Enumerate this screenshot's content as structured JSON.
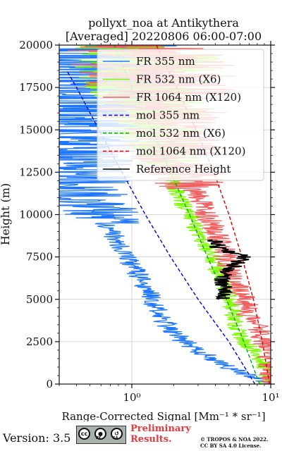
{
  "chart_data": {
    "type": "line",
    "title": "pollyxt_noa at Antikythera",
    "subtitle": "[Averaged] 20220806 06:00-07:00",
    "xlabel": "Range-Corrected Signal [Mm⁻¹ * sr⁻¹]",
    "ylabel": "Height (m)",
    "xscale": "log",
    "xlim": [
      0.3,
      10
    ],
    "ylim": [
      0,
      20000
    ],
    "x_ticks": [
      "10⁰",
      "10¹"
    ],
    "y_ticks": [
      "0",
      "2500",
      "5000",
      "7500",
      "10000",
      "12500",
      "15000",
      "17500",
      "20000"
    ],
    "grid": true,
    "legend_position": "top-right",
    "series": [
      {
        "name": "FR 355 nm",
        "color": "#1f77ff",
        "style": "solid",
        "height": [
          0,
          250,
          500,
          1000,
          1500,
          2000,
          2500,
          3000,
          4000,
          5000,
          6000,
          7000,
          8000,
          9000,
          10000,
          11000,
          12000,
          13000,
          14000,
          15000,
          16000,
          17000,
          18000,
          19000,
          20000
        ],
        "signal": [
          9.5,
          8.5,
          7.0,
          4.8,
          3.8,
          3.0,
          2.4,
          2.0,
          1.6,
          1.4,
          1.2,
          1.0,
          0.85,
          0.7,
          0.6,
          0.5,
          0.45,
          0.4,
          0.4,
          0.4,
          0.4,
          0.4,
          0.4,
          0.4,
          0.4
        ]
      },
      {
        "name": "FR 532 nm (X6)",
        "color": "#7cfc00",
        "style": "solid",
        "height": [
          0,
          500,
          1000,
          1500,
          2000,
          2500,
          3000,
          4000,
          5000,
          6000,
          7000,
          8000,
          9000,
          10000,
          11000,
          12000,
          13000,
          14000,
          15000,
          16000,
          17000,
          18000,
          19000,
          20000
        ],
        "signal": [
          9.5,
          9.5,
          9.3,
          8.5,
          7.5,
          6.5,
          6.0,
          5.5,
          5.0,
          4.6,
          4.0,
          3.5,
          3.0,
          2.6,
          2.2,
          2.0,
          1.8,
          1.7,
          1.6,
          1.5,
          1.4,
          1.3,
          1.2,
          1.2
        ]
      },
      {
        "name": "FR 1064 nm (X120)",
        "color": "#f06060",
        "style": "solid",
        "height": [
          0,
          500,
          1000,
          2000,
          3000,
          4000,
          5000,
          6000,
          7000,
          8000,
          9000,
          10000,
          11000,
          12000,
          13000,
          14000,
          15000,
          16000,
          17000,
          18000,
          19000,
          20000
        ],
        "signal": [
          10,
          10,
          10,
          9.5,
          8.5,
          7.0,
          6.5,
          5.5,
          5.0,
          4.5,
          4.0,
          3.5,
          3.0,
          2.6,
          2.2,
          2.0,
          1.8,
          1.7,
          1.6,
          1.5,
          1.5,
          1.5
        ]
      },
      {
        "name": "mol 355 nm",
        "color": "#0000dd",
        "style": "dashed",
        "height": [
          0,
          2500,
          5000,
          7500,
          10000,
          12500,
          15000,
          17500,
          18500
        ],
        "signal": [
          7.7,
          5.0,
          3.0,
          1.9,
          1.25,
          0.85,
          0.58,
          0.4,
          0.34
        ]
      },
      {
        "name": "mol 532 nm (X6)",
        "color": "#00aa00",
        "style": "dashed",
        "height": [
          0,
          2500,
          5000,
          7500,
          10000,
          12500,
          15000,
          17500,
          20000
        ],
        "signal": [
          8.3,
          6.4,
          4.8,
          3.5,
          2.6,
          1.9,
          1.4,
          1.0,
          0.75
        ]
      },
      {
        "name": "mol 1064 nm (X120)",
        "color": "#e00000",
        "style": "dashed",
        "height": [
          0,
          2500,
          5000,
          7500,
          10000,
          12500,
          15000,
          17500,
          20000
        ],
        "signal": [
          9.8,
          8.7,
          7.5,
          6.2,
          5.0,
          3.9,
          2.9,
          2.1,
          1.5
        ]
      },
      {
        "name": "Reference Height",
        "color": "#000000",
        "style": "solid",
        "height": [
          5000,
          5500,
          6000,
          6500,
          7000,
          7500,
          8000,
          8500
        ],
        "signal": [
          4.5,
          4.8,
          4.4,
          4.6,
          5.5,
          6.5,
          4.2,
          4.0
        ]
      }
    ]
  },
  "footer": {
    "version": "Version: 3.5",
    "license_badge": {
      "cc": "cc",
      "by": "BY",
      "sa": "SA"
    },
    "preliminary_line1": "Preliminary",
    "preliminary_line2": "Results.",
    "copyright_line1": "© TROPOS & NOA 2022.",
    "copyright_line2": "CC BY SA 4.0 License."
  }
}
